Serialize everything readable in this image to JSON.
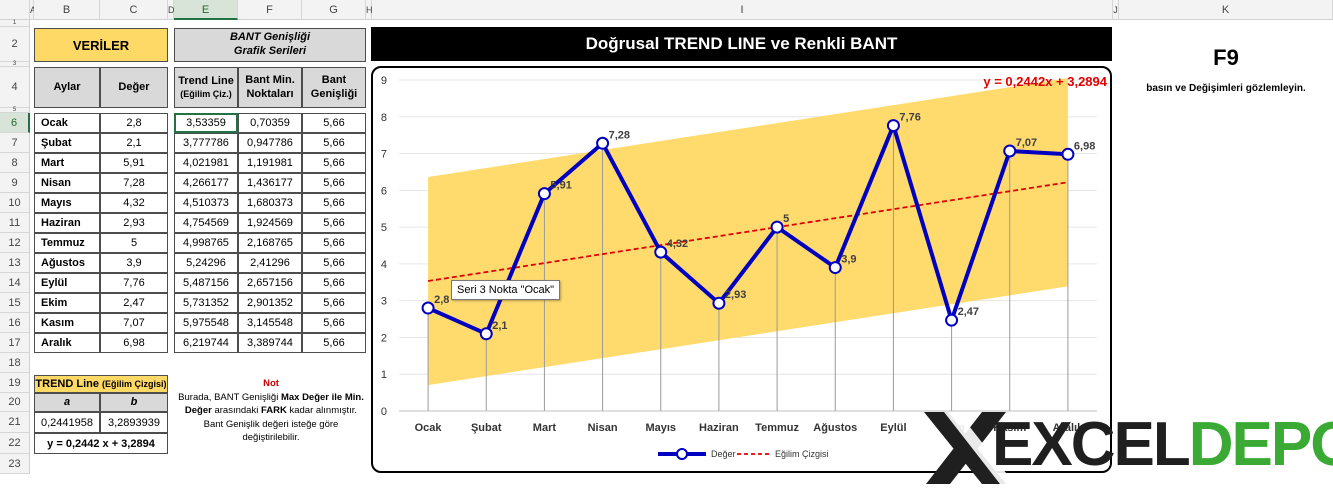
{
  "columns": [
    "A",
    "B",
    "C",
    "D",
    "E",
    "F",
    "G",
    "H",
    "I",
    "J",
    "K"
  ],
  "rows": [
    "1",
    "2",
    "3",
    "4",
    "5",
    "6",
    "7",
    "8",
    "9",
    "10",
    "11",
    "12",
    "13",
    "14",
    "15",
    "16",
    "17",
    "18",
    "19",
    "20",
    "21",
    "22",
    "23"
  ],
  "veriler_label": "VERİLER",
  "bant_header": {
    "line1": "BANT Genişliği",
    "line2": "Grafik Serileri"
  },
  "table_headers": {
    "aylar": "Aylar",
    "deger": "Değer",
    "trend_line1": "Trend Line",
    "trend_line2": "(Eğilim Çiz.)",
    "bant_min1": "Bant Min.",
    "bant_min2": "Noktaları",
    "bant_gen1": "Bant",
    "bant_gen2": "Genişliği"
  },
  "table_rows": [
    {
      "ay": "Ocak",
      "deger": "2,8",
      "trend": "3,53359",
      "min": "0,70359",
      "gen": "5,66"
    },
    {
      "ay": "Şubat",
      "deger": "2,1",
      "trend": "3,777786",
      "min": "0,947786",
      "gen": "5,66"
    },
    {
      "ay": "Mart",
      "deger": "5,91",
      "trend": "4,021981",
      "min": "1,191981",
      "gen": "5,66"
    },
    {
      "ay": "Nisan",
      "deger": "7,28",
      "trend": "4,266177",
      "min": "1,436177",
      "gen": "5,66"
    },
    {
      "ay": "Mayıs",
      "deger": "4,32",
      "trend": "4,510373",
      "min": "1,680373",
      "gen": "5,66"
    },
    {
      "ay": "Haziran",
      "deger": "2,93",
      "trend": "4,754569",
      "min": "1,924569",
      "gen": "5,66"
    },
    {
      "ay": "Temmuz",
      "deger": "5",
      "trend": "4,998765",
      "min": "2,168765",
      "gen": "5,66"
    },
    {
      "ay": "Ağustos",
      "deger": "3,9",
      "trend": "5,24296",
      "min": "2,41296",
      "gen": "5,66"
    },
    {
      "ay": "Eylül",
      "deger": "7,76",
      "trend": "5,487156",
      "min": "2,657156",
      "gen": "5,66"
    },
    {
      "ay": "Ekim",
      "deger": "2,47",
      "trend": "5,731352",
      "min": "2,901352",
      "gen": "5,66"
    },
    {
      "ay": "Kasım",
      "deger": "7,07",
      "trend": "5,975548",
      "min": "3,145548",
      "gen": "5,66"
    },
    {
      "ay": "Aralık",
      "deger": "6,98",
      "trend": "6,219744",
      "min": "3,389744",
      "gen": "5,66"
    }
  ],
  "trend_box": {
    "title": "TREND Line",
    "title_small": "(Eğilim Çizgisi)",
    "a_label": "a",
    "b_label": "b",
    "a_value": "0,2441958",
    "b_value": "3,2893939",
    "formula": "y = 0,2442 x + 3,2894"
  },
  "note": {
    "title": "Not",
    "parts": [
      "Burada, BANT Genişliği ",
      "Max Değer ile Min. Değer",
      " arasındaki ",
      "FARK",
      " kadar alınmıştır. Bant Genişlik değeri isteğe göre değiştirilebilir."
    ]
  },
  "chart_title": "Doğrusal TREND LINE  ve  Renkli BANT",
  "side": {
    "key": "F9",
    "text": "basın ve Değişimleri gözlemleyin."
  },
  "tooltip": "Seri 3 Nokta \"Ocak\"",
  "logo": "EXCELDEPO",
  "chart_data": {
    "type": "line",
    "categories": [
      "Ocak",
      "Şubat",
      "Mart",
      "Nisan",
      "Mayıs",
      "Haziran",
      "Temmuz",
      "Ağustos",
      "Eylül",
      "Ekim",
      "Kasım",
      "Aralık"
    ],
    "series": [
      {
        "name": "Değer",
        "values": [
          2.8,
          2.1,
          5.91,
          7.28,
          4.32,
          2.93,
          5,
          3.9,
          7.76,
          2.47,
          7.07,
          6.98
        ],
        "labels": [
          "2,8",
          "2,1",
          "5,91",
          "7,28",
          "4,32",
          "2,93",
          "5",
          "3,9",
          "7,76",
          "2,47",
          "7,07",
          "6,98"
        ],
        "color": "#0000c0"
      },
      {
        "name": "Eğilim Çizgisi",
        "values": [
          3.53359,
          3.777786,
          4.021981,
          4.266177,
          4.510373,
          4.754569,
          4.998765,
          5.24296,
          5.487156,
          5.731352,
          5.975548,
          6.219744
        ],
        "color": "#e00000"
      }
    ],
    "band": {
      "min": [
        0.70359,
        0.947786,
        1.191981,
        1.436177,
        1.680373,
        1.924569,
        2.168765,
        2.41296,
        2.657156,
        2.901352,
        3.145548,
        3.389744
      ],
      "width": 5.66,
      "color": "#ffd966"
    },
    "equation": "y = 0,2442x + 3,2894",
    "yticks": [
      "0",
      "1",
      "2",
      "3",
      "4",
      "5",
      "6",
      "7",
      "8",
      "9"
    ],
    "ylim": [
      0,
      9
    ],
    "legend_position": "bottom"
  }
}
